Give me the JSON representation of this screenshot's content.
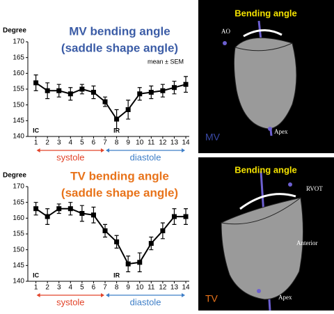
{
  "chart_data": [
    {
      "type": "line",
      "title": [
        "MV bending angle",
        "(saddle shape angle)"
      ],
      "title_color": "#3b5ca6",
      "ylabel": "Degree",
      "legend_note": "mean ± SEM",
      "x": [
        1,
        2,
        3,
        4,
        5,
        6,
        7,
        8,
        9,
        10,
        11,
        12,
        13,
        14
      ],
      "series": [
        {
          "color": "#000000",
          "values": [
            157,
            154.5,
            154.5,
            153.5,
            155,
            154,
            151,
            145.5,
            148.5,
            153.5,
            154,
            154.5,
            155.5,
            156.5
          ],
          "errors": [
            2.5,
            2.5,
            2,
            2,
            1.5,
            2,
            1.5,
            3,
            3,
            2,
            2,
            2,
            2,
            2.5
          ]
        }
      ],
      "xlim": [
        0.3,
        14.3
      ],
      "xticks": [
        1,
        2,
        3,
        4,
        5,
        6,
        7,
        8,
        9,
        10,
        11,
        12,
        13,
        14
      ],
      "ylim": [
        140,
        170
      ],
      "yticks": [
        140,
        145,
        150,
        155,
        160,
        165,
        170
      ],
      "annotations": [
        {
          "text": "IC",
          "x": 1
        },
        {
          "text": "IR",
          "x": 8
        }
      ],
      "phases": [
        {
          "label": "systole",
          "from": 1,
          "to": 7,
          "color": "#e2442a"
        },
        {
          "label": "diastole",
          "from": 7,
          "to": 14,
          "color": "#3f7fc8"
        }
      ]
    },
    {
      "type": "line",
      "title": [
        "TV bending angle",
        "(saddle shape angle)"
      ],
      "title_color": "#e8731a",
      "ylabel": "Degree",
      "x": [
        1,
        2,
        3,
        4,
        5,
        6,
        7,
        8,
        9,
        10,
        11,
        12,
        13,
        14
      ],
      "series": [
        {
          "color": "#000000",
          "values": [
            163,
            160.5,
            163,
            163,
            161.5,
            161,
            156,
            152.5,
            145.5,
            146,
            152,
            156,
            160.5,
            160.5
          ],
          "errors": [
            2,
            2.5,
            1.5,
            2,
            2.5,
            2.5,
            2,
            2,
            2.5,
            3,
            2,
            2.5,
            2.5,
            2.5
          ]
        }
      ],
      "xlim": [
        0.3,
        14.3
      ],
      "xticks": [
        1,
        2,
        3,
        4,
        5,
        6,
        7,
        8,
        9,
        10,
        11,
        12,
        13,
        14
      ],
      "ylim": [
        140,
        170
      ],
      "yticks": [
        140,
        145,
        150,
        155,
        160,
        165,
        170
      ],
      "annotations": [
        {
          "text": "IC",
          "x": 1
        },
        {
          "text": "IR",
          "x": 8
        }
      ],
      "phases": [
        {
          "label": "systole",
          "from": 1,
          "to": 7,
          "color": "#e2442a"
        },
        {
          "label": "diastole",
          "from": 7,
          "to": 14,
          "color": "#3f7fc8"
        }
      ]
    }
  ],
  "panels": [
    {
      "heading": "Bending angle",
      "labels": [
        "AO",
        "Apex"
      ],
      "valve": "MV"
    },
    {
      "heading": "Bending angle",
      "labels": [
        "RVOT",
        "Anterior",
        "Apex"
      ],
      "valve": "TV"
    }
  ]
}
